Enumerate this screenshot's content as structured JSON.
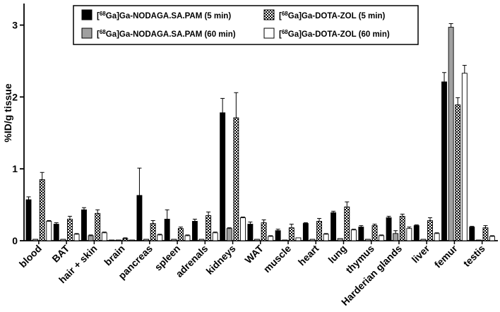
{
  "chart_data": {
    "type": "bar",
    "ylabel": "%ID/g tissue",
    "ylim": [
      0,
      3.3
    ],
    "yticks": [
      0,
      1,
      2,
      3
    ],
    "categories": [
      "blood",
      "BAT",
      "hair + skin",
      "brain",
      "pancreas",
      "spleen",
      "adrenals",
      "kidneys",
      "WAT",
      "muscle",
      "heart",
      "lung",
      "thymus",
      "Harderian glands",
      "liver",
      "femur",
      "testis"
    ],
    "series": [
      {
        "name_sup": "68",
        "name_rest": "Ga]Ga-NODAGA.SA.PAM (5 min)",
        "fill": "#000000",
        "pattern": "solid",
        "values": [
          0.57,
          0.23,
          0.43,
          0.01,
          0.63,
          0.3,
          0.27,
          1.78,
          0.23,
          0.14,
          0.24,
          0.39,
          0.19,
          0.32,
          0.21,
          2.21,
          0.19
        ],
        "errors": [
          0.04,
          0.02,
          0.03,
          0.0,
          0.38,
          0.13,
          0.03,
          0.2,
          0.03,
          0.02,
          0.01,
          0.02,
          0.02,
          0.02,
          0.01,
          0.13,
          0.01
        ]
      },
      {
        "name_sup": "68",
        "name_rest": "Ga]Ga-NODAGA.SA.PAM (60 min)",
        "fill": "#a0a0a0",
        "pattern": "solid",
        "values": [
          0.02,
          0.02,
          0.07,
          0.01,
          0.02,
          0.02,
          0.02,
          0.17,
          0.02,
          0.01,
          0.02,
          0.03,
          0.02,
          0.1,
          0.02,
          2.97,
          0.01
        ],
        "errors": [
          0.0,
          0.0,
          0.01,
          0.0,
          0.0,
          0.0,
          0.0,
          0.01,
          0.0,
          0.0,
          0.0,
          0.0,
          0.0,
          0.04,
          0.0,
          0.05,
          0.0
        ]
      },
      {
        "name_sup": "68",
        "name_rest": "Ga]Ga-DOTA-ZOL (5 min)",
        "fill": "#ffffff",
        "pattern": "checker",
        "values": [
          0.85,
          0.3,
          0.38,
          0.03,
          0.24,
          0.17,
          0.35,
          1.71,
          0.25,
          0.18,
          0.27,
          0.47,
          0.21,
          0.34,
          0.28,
          1.89,
          0.18
        ],
        "errors": [
          0.1,
          0.04,
          0.05,
          0.01,
          0.04,
          0.02,
          0.05,
          0.35,
          0.04,
          0.05,
          0.04,
          0.07,
          0.02,
          0.03,
          0.04,
          0.1,
          0.03
        ]
      },
      {
        "name_sup": "68",
        "name_rest": "Ga]Ga-DOTA-ZOL (60 min)",
        "fill": "#ffffff",
        "pattern": "open",
        "values": [
          0.27,
          0.09,
          0.11,
          0.01,
          0.08,
          0.07,
          0.11,
          0.32,
          0.06,
          0.04,
          0.09,
          0.15,
          0.07,
          0.17,
          0.1,
          2.33,
          0.06
        ],
        "errors": [
          0.01,
          0.01,
          0.01,
          0.0,
          0.01,
          0.01,
          0.01,
          0.01,
          0.01,
          0.0,
          0.01,
          0.01,
          0.01,
          0.02,
          0.01,
          0.11,
          0.01
        ]
      }
    ],
    "legend_position": "top"
  },
  "colors": {
    "axis": "#000000",
    "solid_black": "#000000",
    "grey": "#a0a0a0"
  }
}
